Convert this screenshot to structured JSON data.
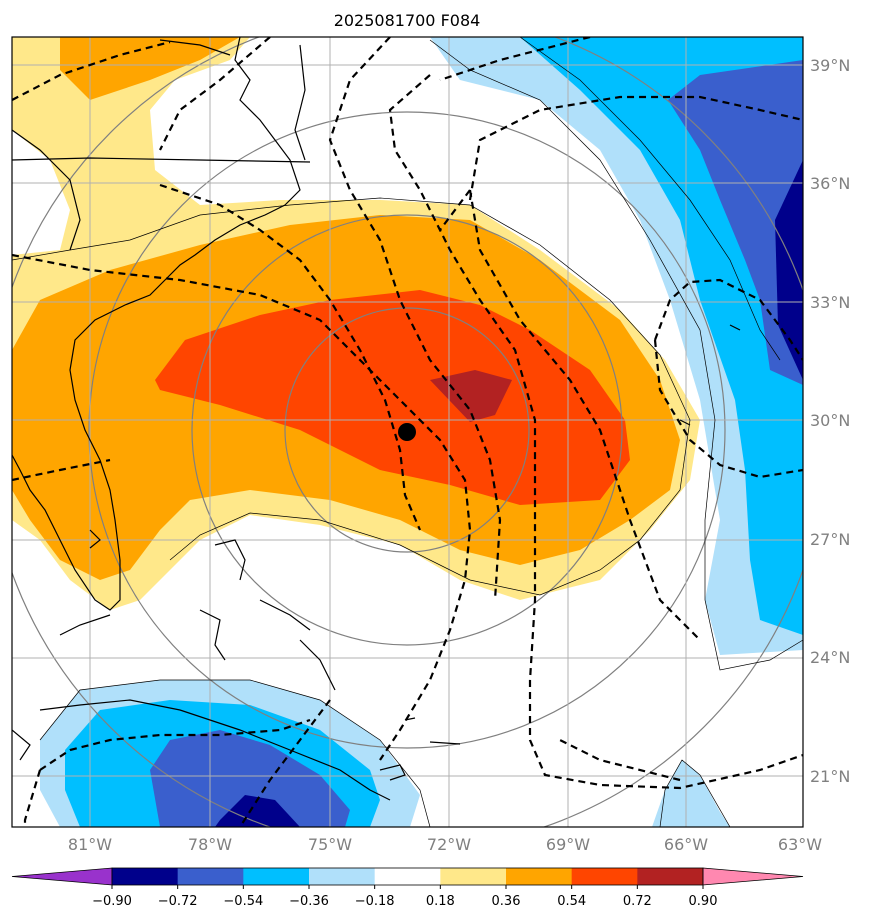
{
  "title": "2025081700 F084",
  "lat_labels": [
    "39°N",
    "36°N",
    "33°N",
    "30°N",
    "27°N",
    "24°N",
    "21°N"
  ],
  "lon_labels": [
    "81°W",
    "78°W",
    "75°W",
    "72°W",
    "69°W",
    "66°W",
    "63°W"
  ],
  "colorbar": {
    "ticks": [
      "−0.90",
      "−0.72",
      "−0.54",
      "−0.36",
      "−0.18",
      "0.18",
      "0.36",
      "0.54",
      "0.72",
      "0.90"
    ],
    "colors": [
      "#9932cc",
      "#00008b",
      "#3a5fcd",
      "#00bfff",
      "#b0e0fa",
      "#ffffff",
      "#ffe88a",
      "#ffa500",
      "#ff4500",
      "#b22222",
      "#ff88b0"
    ]
  },
  "center_marker": {
    "lat": 29.7,
    "lon": -73.0
  }
}
